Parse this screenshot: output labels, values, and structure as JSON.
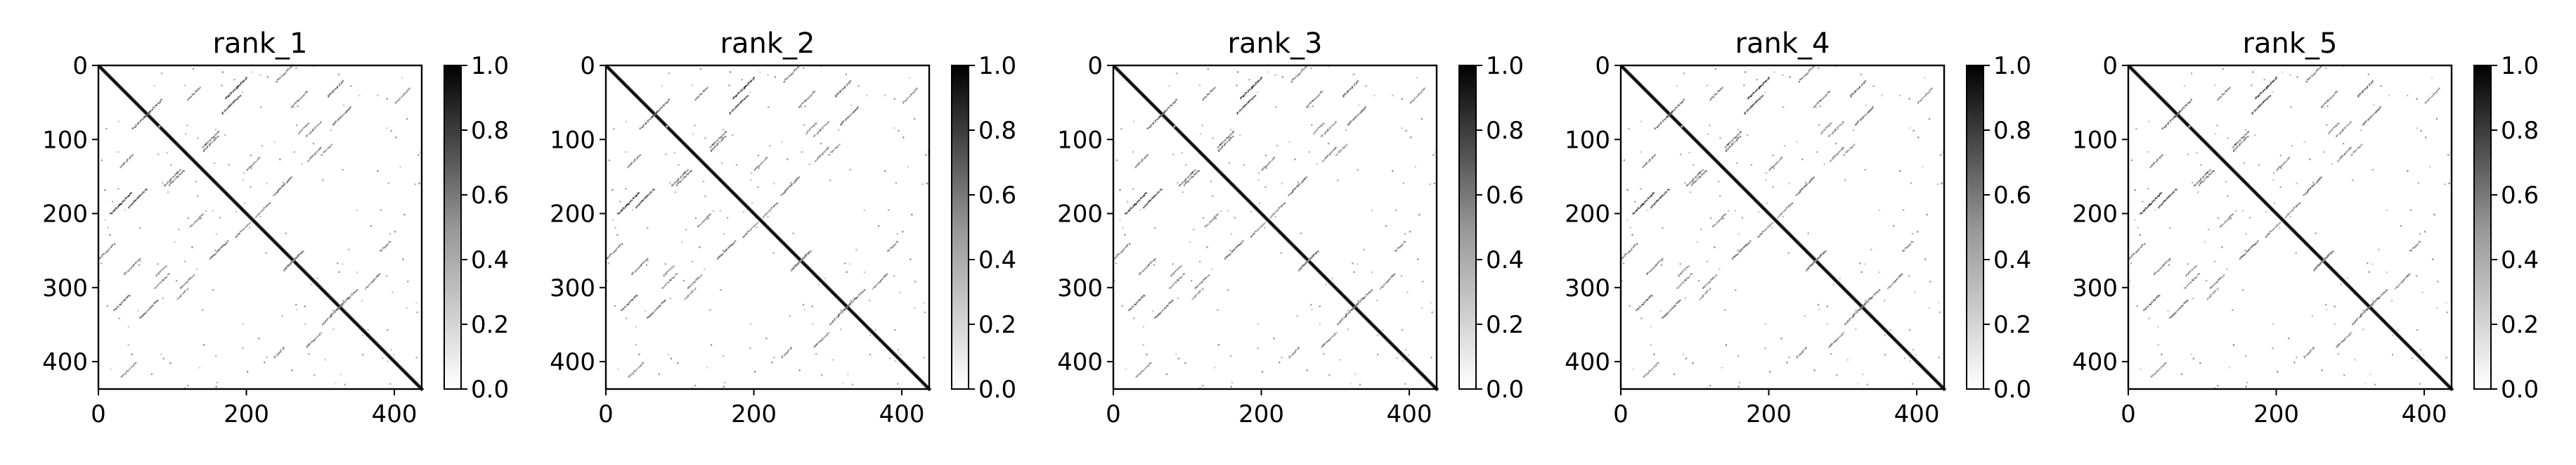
{
  "chart_data": [
    {
      "type": "heatmap",
      "title": "rank_1",
      "xlim": [
        0,
        437
      ],
      "ylim": [
        437,
        0
      ],
      "xticks": [
        "0",
        "200",
        "400"
      ],
      "xtick_values": [
        0,
        200,
        400
      ],
      "yticks": [
        "0",
        "100",
        "200",
        "300",
        "400"
      ],
      "ytick_values": [
        0,
        100,
        200,
        300,
        400
      ],
      "colorbar": {
        "colormap": "Greys",
        "range": [
          0.0,
          1.0
        ],
        "ticks": [
          "0.0",
          "0.2",
          "0.4",
          "0.6",
          "0.8",
          "1.0"
        ],
        "tick_values": [
          0.0,
          0.2,
          0.4,
          0.6,
          0.8,
          1.0
        ]
      },
      "xlabel": "",
      "ylabel": ""
    },
    {
      "type": "heatmap",
      "title": "rank_2",
      "xlim": [
        0,
        437
      ],
      "ylim": [
        437,
        0
      ],
      "xticks": [
        "0",
        "200",
        "400"
      ],
      "xtick_values": [
        0,
        200,
        400
      ],
      "yticks": [
        "0",
        "100",
        "200",
        "300",
        "400"
      ],
      "ytick_values": [
        0,
        100,
        200,
        300,
        400
      ],
      "colorbar": {
        "colormap": "Greys",
        "range": [
          0.0,
          1.0
        ],
        "ticks": [
          "0.0",
          "0.2",
          "0.4",
          "0.6",
          "0.8",
          "1.0"
        ],
        "tick_values": [
          0.0,
          0.2,
          0.4,
          0.6,
          0.8,
          1.0
        ]
      },
      "xlabel": "",
      "ylabel": ""
    },
    {
      "type": "heatmap",
      "title": "rank_3",
      "xlim": [
        0,
        437
      ],
      "ylim": [
        437,
        0
      ],
      "xticks": [
        "0",
        "200",
        "400"
      ],
      "xtick_values": [
        0,
        200,
        400
      ],
      "yticks": [
        "0",
        "100",
        "200",
        "300",
        "400"
      ],
      "ytick_values": [
        0,
        100,
        200,
        300,
        400
      ],
      "colorbar": {
        "colormap": "Greys",
        "range": [
          0.0,
          1.0
        ],
        "ticks": [
          "0.0",
          "0.2",
          "0.4",
          "0.6",
          "0.8",
          "1.0"
        ],
        "tick_values": [
          0.0,
          0.2,
          0.4,
          0.6,
          0.8,
          1.0
        ]
      },
      "xlabel": "",
      "ylabel": ""
    },
    {
      "type": "heatmap",
      "title": "rank_4",
      "xlim": [
        0,
        437
      ],
      "ylim": [
        437,
        0
      ],
      "xticks": [
        "0",
        "200",
        "400"
      ],
      "xtick_values": [
        0,
        200,
        400
      ],
      "yticks": [
        "0",
        "100",
        "200",
        "300",
        "400"
      ],
      "ytick_values": [
        0,
        100,
        200,
        300,
        400
      ],
      "colorbar": {
        "colormap": "Greys",
        "range": [
          0.0,
          1.0
        ],
        "ticks": [
          "0.0",
          "0.2",
          "0.4",
          "0.6",
          "0.8",
          "1.0"
        ],
        "tick_values": [
          0.0,
          0.2,
          0.4,
          0.6,
          0.8,
          1.0
        ]
      },
      "xlabel": "",
      "ylabel": ""
    },
    {
      "type": "heatmap",
      "title": "rank_5",
      "xlim": [
        0,
        437
      ],
      "ylim": [
        437,
        0
      ],
      "xticks": [
        "0",
        "200",
        "400"
      ],
      "xtick_values": [
        0,
        200,
        400
      ],
      "yticks": [
        "0",
        "100",
        "200",
        "300",
        "400"
      ],
      "ytick_values": [
        0,
        100,
        200,
        300,
        400
      ],
      "colorbar": {
        "colormap": "Greys",
        "range": [
          0.0,
          1.0
        ],
        "ticks": [
          "0.0",
          "0.2",
          "0.4",
          "0.6",
          "0.8",
          "1.0"
        ],
        "tick_values": [
          0.0,
          0.2,
          0.4,
          0.6,
          0.8,
          1.0
        ]
      },
      "xlabel": "",
      "ylabel": ""
    }
  ]
}
